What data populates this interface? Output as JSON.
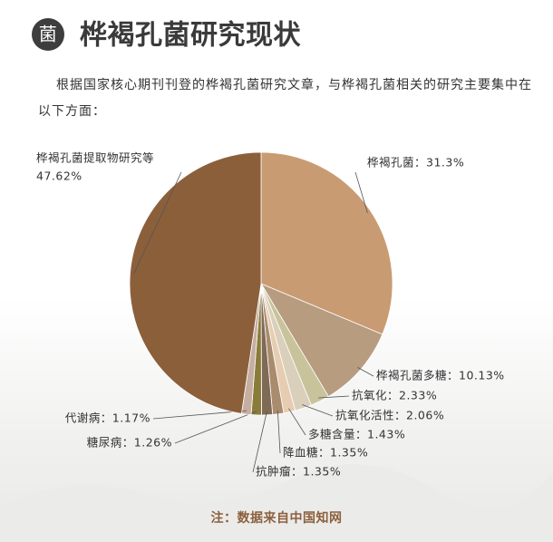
{
  "chart_data": {
    "type": "pie",
    "icon": "菌",
    "title": "桦褐孔菌研究现状",
    "subtitle": "根据国家核心期刊刊登的桦褐孔菌研究文章，与桦褐孔菌相关的研究主要集中在以下方面：",
    "note": "注：数据来自中国知网",
    "values": [
      31.3,
      10.13,
      2.33,
      2.06,
      1.43,
      1.35,
      1.35,
      1.26,
      1.17,
      47.62
    ],
    "labels": [
      [
        "桦褐孔菌：31.3%"
      ],
      [
        "桦褐孔菌多糖：10.13%"
      ],
      [
        "抗氧化：2.33%"
      ],
      [
        "抗氧化活性：2.06%"
      ],
      [
        "多糖含量：1.43%"
      ],
      [
        "降血糖：1.35%"
      ],
      [
        "抗肿瘤：1.35%"
      ],
      [
        "糖尿病：1.26%"
      ],
      [
        "代谢病：1.17%"
      ],
      [
        "桦褐孔菌提取物研究等",
        "47.62%"
      ]
    ],
    "colors": [
      "#c99b72",
      "#b79c80",
      "#c9c39b",
      "#d9cfbb",
      "#e6cdb1",
      "#a98b6e",
      "#7f6a55",
      "#8b7b3a",
      "#c6aea2",
      "#8c5f3b"
    ]
  }
}
